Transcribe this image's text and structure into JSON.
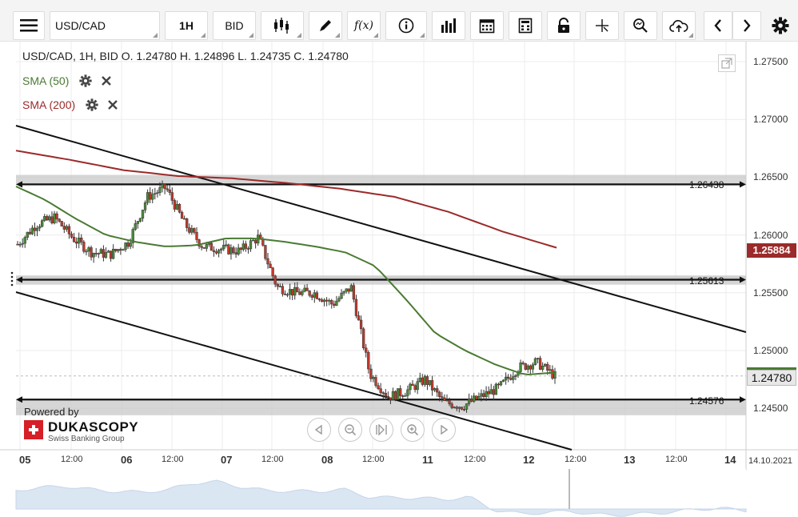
{
  "toolbar": {
    "symbol": "USD/CAD",
    "timeframe": "1H",
    "price_type": "BID",
    "icons": [
      "menu-icon",
      "candlestick-type-icon",
      "pencil-icon",
      "function-icon",
      "info-icon",
      "volume-bars-icon",
      "calendar-icon",
      "calculator-icon",
      "lock-icon",
      "crosshair-icon",
      "zoom-icon",
      "cloud-upload-icon",
      "arrow-left-icon",
      "arrow-right-icon",
      "gear-icon"
    ],
    "function_label": "f(x)"
  },
  "header": {
    "ohlc_line": "USD/CAD, 1H, BID    O. 1.24780 H. 1.24896 L. 1.24735 C. 1.24780"
  },
  "indicators": [
    {
      "name": "SMA (50)",
      "color": "#4a7a32"
    },
    {
      "name": "SMA (200)",
      "color": "#9b2a2a"
    }
  ],
  "branding": {
    "powered_by": "Powered by",
    "name": "DUKASCOPY",
    "subtitle": "Swiss Banking Group"
  },
  "axis": {
    "price_ticks": [
      "1.27500",
      "1.27000",
      "1.26500",
      "1.26000",
      "1.25500",
      "1.25000",
      "1.24500"
    ],
    "time_labels": [
      {
        "text": "05",
        "day": true
      },
      {
        "text": "12:00",
        "day": false
      },
      {
        "text": "06",
        "day": true
      },
      {
        "text": "12:00",
        "day": false
      },
      {
        "text": "07",
        "day": true
      },
      {
        "text": "12:00",
        "day": false
      },
      {
        "text": "08",
        "day": true
      },
      {
        "text": "12:00",
        "day": false
      },
      {
        "text": "11",
        "day": true
      },
      {
        "text": "12:00",
        "day": false
      },
      {
        "text": "12",
        "day": true
      },
      {
        "text": "12:00",
        "day": false
      },
      {
        "text": "13",
        "day": true
      },
      {
        "text": "12:00",
        "day": false
      },
      {
        "text": "14",
        "day": true
      },
      {
        "text": "14.10.2021",
        "day": false
      }
    ]
  },
  "price_boxes": {
    "sma200": "1.25884",
    "current": "1.24780"
  },
  "levels": [
    {
      "label": "1.26438",
      "value": 1.26438
    },
    {
      "label": "1.25613",
      "value": 1.25613
    },
    {
      "label": "1.24576",
      "value": 1.24576
    }
  ],
  "colors": {
    "sma50": "#4a7a32",
    "sma200": "#9b2a2a",
    "bull": "#4a8a3a",
    "bear": "#c0392b",
    "zone": "#c8c8c8"
  },
  "chart_data": {
    "type": "candlestick",
    "title": "USD/CAD, 1H, BID",
    "ylim": [
      1.2436,
      1.2765
    ],
    "x_start_day": "05",
    "x_end_day": "14.10.2021",
    "last_close": 1.2478,
    "ohlc_last": {
      "open": 1.2478,
      "high": 1.24896,
      "low": 1.24735,
      "close": 1.2478
    },
    "horizontal_levels": [
      1.26438,
      1.25613,
      1.24576
    ],
    "sma50_sample": [
      1.2642,
      1.263,
      1.2614,
      1.26,
      1.2594,
      1.259,
      1.2591,
      1.2597,
      1.2597,
      1.2594,
      1.259,
      1.2585,
      1.2573,
      1.2545,
      1.2515,
      1.25,
      1.2488,
      1.2479,
      1.2481
    ],
    "sma200_sample": [
      1.2673,
      1.2665,
      1.2656,
      1.2651,
      1.2649,
      1.2645,
      1.264,
      1.2633,
      1.262,
      1.2603,
      1.2589
    ],
    "candles_close_sample": [
      1.2592,
      1.2609,
      1.2615,
      1.2597,
      1.2585,
      1.2583,
      1.2594,
      1.2633,
      1.2641,
      1.261,
      1.259,
      1.2588,
      1.2586,
      1.2598,
      1.2555,
      1.255,
      1.255,
      1.254,
      1.2555,
      1.248,
      1.246,
      1.2465,
      1.2475,
      1.2455,
      1.2452,
      1.246,
      1.2468,
      1.2485,
      1.249,
      1.2478
    ]
  }
}
